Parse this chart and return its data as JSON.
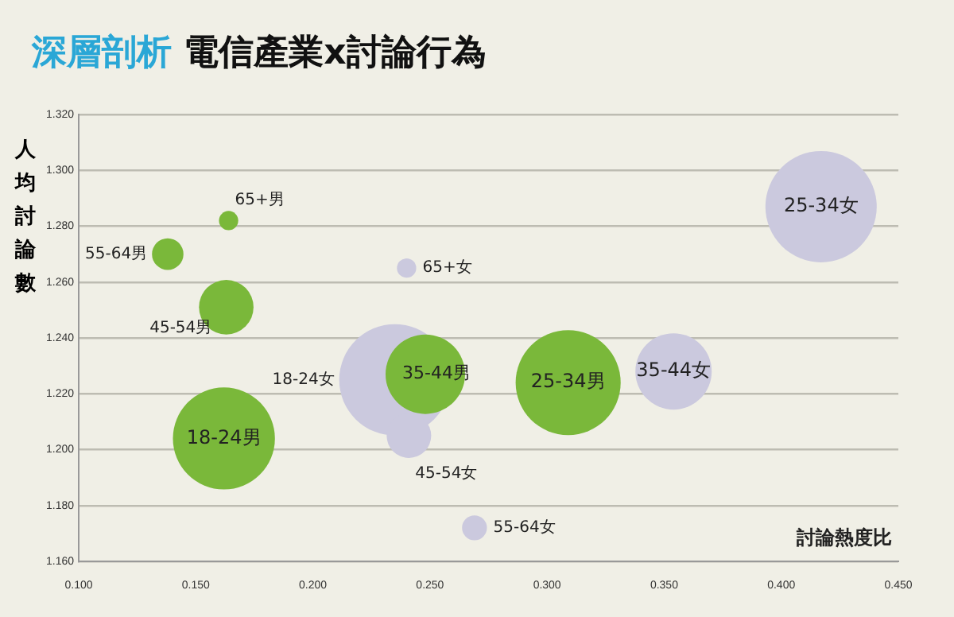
{
  "chart_data": {
    "type": "bubble",
    "title": "深層剖析 電信產業x討論行為",
    "xlabel": "討論熱度比",
    "ylabel": "人均討論數",
    "xlim": [
      0.1,
      0.45
    ],
    "xticks": [
      {
        "value": 0.1,
        "label": "0.100"
      },
      {
        "value": 0.15,
        "label": "0.150"
      },
      {
        "value": 0.2,
        "label": "0.200"
      },
      {
        "value": 0.25,
        "label": "0.250"
      },
      {
        "value": 0.3,
        "label": "0.300"
      },
      {
        "value": 0.35,
        "label": "0.350"
      },
      {
        "value": 0.4,
        "label": "0.400"
      },
      {
        "value": 0.45,
        "label": "0.450"
      }
    ],
    "ylim": [
      1.16,
      1.32
    ],
    "yticks": [
      {
        "value": 1.16,
        "label": "1.160"
      },
      {
        "value": 1.18,
        "label": "1.180"
      },
      {
        "value": 1.2,
        "label": "1.200"
      },
      {
        "value": 1.22,
        "label": "1.220"
      },
      {
        "value": 1.24,
        "label": "1.240"
      },
      {
        "value": 1.26,
        "label": "1.260"
      },
      {
        "value": 1.28,
        "label": "1.280"
      },
      {
        "value": 1.3,
        "label": "1.300"
      },
      {
        "value": 1.32,
        "label": "1.320"
      }
    ],
    "grid": "y",
    "legend": false,
    "series": [
      {
        "name": "65+男",
        "color": "#7ab83a",
        "x": [
          0.164
        ],
        "values": [
          1.282
        ],
        "sizes": [
          0.03
        ]
      },
      {
        "name": "55-64男",
        "color": "#7ab83a",
        "x": [
          0.138
        ],
        "values": [
          1.27
        ],
        "sizes": [
          0.08
        ]
      },
      {
        "name": "45-54男",
        "color": "#7ab83a",
        "x": [
          0.163
        ],
        "values": [
          1.251
        ],
        "sizes": [
          0.24
        ]
      },
      {
        "name": "18-24男",
        "color": "#7ab83a",
        "x": [
          0.162
        ],
        "values": [
          1.204
        ],
        "sizes": [
          0.84
        ]
      },
      {
        "name": "18-24女",
        "color": "#cbc9de",
        "x": [
          0.235
        ],
        "values": [
          1.225
        ],
        "sizes": [
          1
        ]
      },
      {
        "name": "35-44男",
        "color": "#7ab83a",
        "x": [
          0.248
        ],
        "values": [
          1.227
        ],
        "sizes": [
          0.51
        ]
      },
      {
        "name": "25-34男",
        "color": "#7ab83a",
        "x": [
          0.309
        ],
        "values": [
          1.224
        ],
        "sizes": [
          0.89
        ]
      },
      {
        "name": "65+女",
        "color": "#cbc9de",
        "x": [
          0.24
        ],
        "values": [
          1.265
        ],
        "sizes": [
          0.03
        ]
      },
      {
        "name": "45-54女",
        "color": "#cbc9de",
        "x": [
          0.241
        ],
        "values": [
          1.205
        ],
        "sizes": [
          0.16
        ]
      },
      {
        "name": "55-64女",
        "color": "#cbc9de",
        "x": [
          0.269
        ],
        "values": [
          1.172
        ],
        "sizes": [
          0.05
        ]
      },
      {
        "name": "35-44女",
        "color": "#cbc9de",
        "x": [
          0.354
        ],
        "values": [
          1.228
        ],
        "sizes": [
          0.47
        ]
      },
      {
        "name": "25-34女",
        "color": "#cbc9de",
        "x": [
          0.417
        ],
        "values": [
          1.287
        ],
        "sizes": [
          1
        ]
      }
    ]
  }
}
